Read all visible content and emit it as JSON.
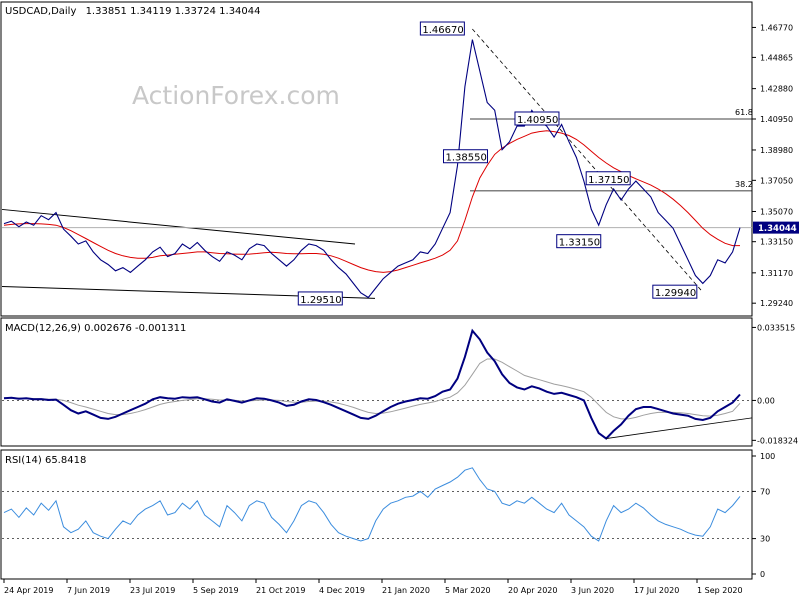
{
  "header": {
    "symbol": "USDCAD,Daily",
    "ohlc": "1.33851 1.34119 1.33724 1.34044",
    "watermark": "ActionForex.com"
  },
  "colors": {
    "price": "#000080",
    "ma": "#dd0000",
    "macd": "#000080",
    "signal": "#a0a0a0",
    "rsi": "#3c8dde",
    "grid": "#000000",
    "current_price_bg": "#000080",
    "background": "#ffffff",
    "watermark": "#c8c8c8"
  },
  "chart_data": [
    {
      "type": "line",
      "panel": "price",
      "title": "USDCAD,Daily 1.33851 1.34119 1.33724 1.34044",
      "ylim": [
        1.2868,
        1.4737
      ],
      "y_ticks": [
        "1.46770",
        "1.44865",
        "1.42880",
        "1.40950",
        "1.38980",
        "1.37050",
        "1.35070",
        "1.33150",
        "1.31170",
        "1.29240"
      ],
      "x_ticks": [
        "24 Apr 2019",
        "7 Jun 2019",
        "23 Jul 2019",
        "5 Sep 2019",
        "21 Oct 2019",
        "4 Dec 2019",
        "21 Jan 2020",
        "5 Mar 2020",
        "20 Apr 2020",
        "3 Jun 2020",
        "17 Jul 2020",
        "1 Sep 2020"
      ],
      "current_price": "1.34044",
      "series": [
        {
          "name": "",
          "values": [
            1.343,
            1.3445,
            1.341,
            1.344,
            1.342,
            1.348,
            1.3455,
            1.35,
            1.3395,
            1.335,
            1.33,
            1.332,
            1.325,
            1.32,
            1.317,
            1.313,
            1.315,
            1.312,
            1.316,
            1.32,
            1.325,
            1.328,
            1.322,
            1.324,
            1.33,
            1.327,
            1.331,
            1.326,
            1.322,
            1.319,
            1.325,
            1.323,
            1.32,
            1.327,
            1.33,
            1.329,
            1.324,
            1.32,
            1.316,
            1.32,
            1.326,
            1.33,
            1.329,
            1.326,
            1.32,
            1.315,
            1.311,
            1.305,
            1.299,
            1.296,
            1.302,
            1.308,
            1.312,
            1.316,
            1.318,
            1.32,
            1.325,
            1.324,
            1.33,
            1.34,
            1.35,
            1.38,
            1.43,
            1.46,
            1.44,
            1.42,
            1.415,
            1.39,
            1.395,
            1.405,
            1.405,
            1.415,
            1.408,
            1.405,
            1.398,
            1.406,
            1.395,
            1.385,
            1.37,
            1.352,
            1.342,
            1.355,
            1.365,
            1.358,
            1.365,
            1.37,
            1.365,
            1.36,
            1.35,
            1.345,
            1.34,
            1.33,
            1.32,
            1.31,
            1.305,
            1.31,
            1.32,
            1.318,
            1.325,
            1.3404
          ]
        },
        {
          "name": "",
          "values": [
            1.342,
            1.3425,
            1.3428,
            1.343,
            1.343,
            1.3428,
            1.3425,
            1.342,
            1.3405,
            1.3385,
            1.336,
            1.3335,
            1.331,
            1.3285,
            1.326,
            1.324,
            1.3225,
            1.3215,
            1.321,
            1.321,
            1.3215,
            1.3225,
            1.323,
            1.3235,
            1.324,
            1.3245,
            1.325,
            1.325,
            1.3245,
            1.324,
            1.3238,
            1.3236,
            1.3235,
            1.3236,
            1.324,
            1.3245,
            1.3248,
            1.3245,
            1.324,
            1.3238,
            1.3238,
            1.324,
            1.324,
            1.3235,
            1.3225,
            1.321,
            1.319,
            1.317,
            1.315,
            1.3135,
            1.3125,
            1.312,
            1.3125,
            1.3135,
            1.315,
            1.3165,
            1.318,
            1.3195,
            1.321,
            1.323,
            1.326,
            1.332,
            1.345,
            1.36,
            1.372,
            1.38,
            1.387,
            1.391,
            1.394,
            1.3965,
            1.3985,
            1.4005,
            1.4015,
            1.402,
            1.4015,
            1.4005,
            1.399,
            1.3965,
            1.393,
            1.389,
            1.385,
            1.3815,
            1.3785,
            1.376,
            1.3735,
            1.3715,
            1.3695,
            1.3675,
            1.365,
            1.362,
            1.3585,
            1.3545,
            1.35,
            1.345,
            1.34,
            1.336,
            1.333,
            1.3305,
            1.329,
            1.329
          ]
        }
      ],
      "annotations": [
        "1.46670",
        "1.40950",
        "1.38550",
        "1.37150",
        "1.33150",
        "1.29940",
        "1.29510"
      ],
      "fib_labels": [
        "61.8",
        "38.2"
      ],
      "fib_levels": [
        1.4095,
        1.3638
      ],
      "hline": 1.3404
    },
    {
      "type": "line",
      "panel": "macd",
      "title": "MACD(12,26,9) 0.002676 -0.001311",
      "ylim": [
        -0.02,
        0.036
      ],
      "y_ticks": [
        "0.033515",
        "0.00",
        "-0.018324"
      ],
      "series": [
        {
          "name": "",
          "values": [
            0.001,
            0.0012,
            0.0008,
            0.001,
            0.0005,
            0.0006,
            0.0002,
            0.0004,
            -0.002,
            -0.0045,
            -0.006,
            -0.005,
            -0.0065,
            -0.008,
            -0.0085,
            -0.0075,
            -0.006,
            -0.0045,
            -0.003,
            -0.0015,
            0.0005,
            0.0015,
            0.001,
            0.0008,
            0.0015,
            0.0012,
            0.0015,
            0.0005,
            -0.0005,
            -0.001,
            0.0005,
            -0.0002,
            -0.001,
            0.0,
            0.001,
            0.0008,
            0.0,
            -0.001,
            -0.0025,
            -0.002,
            -0.0005,
            0.0005,
            0.0002,
            -0.0008,
            -0.002,
            -0.0035,
            -0.005,
            -0.0065,
            -0.008,
            -0.0085,
            -0.007,
            -0.005,
            -0.003,
            -0.0015,
            -0.0005,
            0.0002,
            0.001,
            0.0008,
            0.002,
            0.004,
            0.005,
            0.01,
            0.02,
            0.032,
            0.028,
            0.022,
            0.018,
            0.012,
            0.008,
            0.006,
            0.005,
            0.0065,
            0.0055,
            0.004,
            0.003,
            0.0035,
            0.0025,
            0.0015,
            0.0,
            -0.008,
            -0.015,
            -0.0175,
            -0.014,
            -0.011,
            -0.007,
            -0.004,
            -0.003,
            -0.003,
            -0.004,
            -0.005,
            -0.006,
            -0.0065,
            -0.007,
            -0.0085,
            -0.009,
            -0.008,
            -0.005,
            -0.003,
            -0.001,
            0.0027
          ]
        },
        {
          "name": "",
          "values": [
            0.0012,
            0.0011,
            0.0011,
            0.001,
            0.0009,
            0.0008,
            0.0006,
            0.0005,
            0.0,
            -0.001,
            -0.0022,
            -0.003,
            -0.004,
            -0.005,
            -0.006,
            -0.0065,
            -0.0065,
            -0.006,
            -0.0052,
            -0.0042,
            -0.003,
            -0.0018,
            -0.001,
            -0.0005,
            0.0,
            0.0004,
            0.0008,
            0.0008,
            0.0005,
            0.0002,
            0.0002,
            0.0001,
            -0.0002,
            -0.0002,
            0.0,
            0.0002,
            0.0002,
            0.0,
            -0.0005,
            -0.0008,
            -0.0008,
            -0.0005,
            -0.0003,
            -0.0003,
            -0.0007,
            -0.0013,
            -0.0022,
            -0.0032,
            -0.0044,
            -0.0055,
            -0.006,
            -0.0058,
            -0.0052,
            -0.0044,
            -0.0035,
            -0.0026,
            -0.0018,
            -0.0012,
            -0.0005,
            0.0005,
            0.0015,
            0.0035,
            0.007,
            0.012,
            0.017,
            0.019,
            0.019,
            0.0175,
            0.0155,
            0.0135,
            0.0115,
            0.0105,
            0.0095,
            0.0085,
            0.0075,
            0.0068,
            0.006,
            0.005,
            0.004,
            0.0015,
            -0.002,
            -0.0055,
            -0.0075,
            -0.0085,
            -0.0085,
            -0.0078,
            -0.0068,
            -0.006,
            -0.0055,
            -0.0054,
            -0.0055,
            -0.0057,
            -0.006,
            -0.0065,
            -0.007,
            -0.0072,
            -0.0068,
            -0.006,
            -0.005,
            -0.0013
          ]
        }
      ],
      "hline": 0.0
    },
    {
      "type": "line",
      "panel": "rsi",
      "title": "RSI(14) 65.8418",
      "ylim": [
        0,
        100
      ],
      "y_ticks": [
        "100",
        "70",
        "30",
        "0"
      ],
      "levels": [
        70,
        30
      ],
      "series": [
        {
          "name": "",
          "values": [
            52,
            55,
            48,
            56,
            50,
            60,
            54,
            62,
            40,
            35,
            38,
            45,
            35,
            32,
            30,
            38,
            45,
            42,
            50,
            55,
            58,
            62,
            50,
            52,
            60,
            55,
            62,
            50,
            45,
            40,
            58,
            52,
            45,
            58,
            62,
            60,
            48,
            42,
            35,
            45,
            58,
            62,
            60,
            52,
            42,
            35,
            32,
            30,
            28,
            30,
            45,
            55,
            60,
            62,
            65,
            66,
            70,
            65,
            72,
            75,
            78,
            82,
            88,
            90,
            80,
            72,
            70,
            60,
            58,
            62,
            60,
            65,
            60,
            55,
            52,
            60,
            50,
            45,
            40,
            32,
            28,
            45,
            58,
            52,
            55,
            60,
            56,
            50,
            45,
            42,
            40,
            38,
            35,
            33,
            32,
            40,
            55,
            52,
            58,
            65.8
          ]
        }
      ]
    }
  ]
}
